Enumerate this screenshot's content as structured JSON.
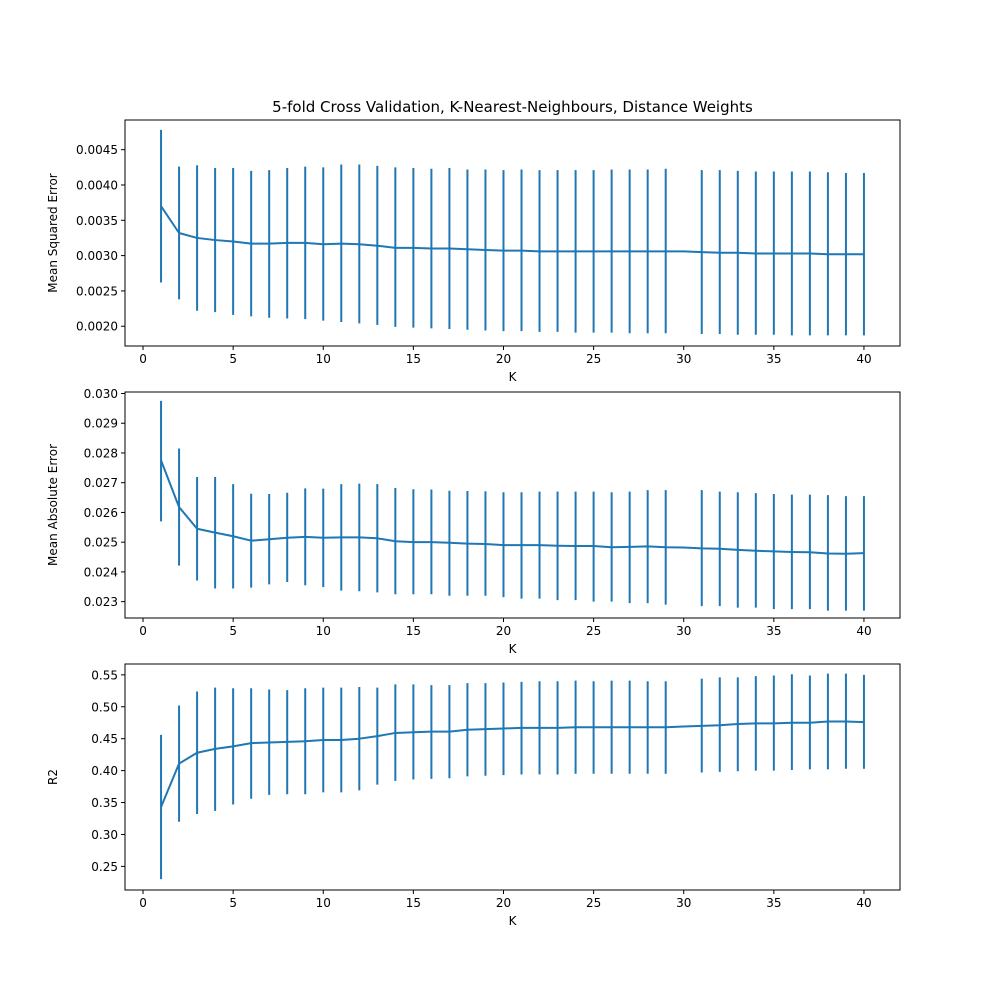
{
  "figure": {
    "title": "5-fold Cross Validation, K-Nearest-Neighbours, Distance Weights"
  },
  "chart_data": [
    {
      "type": "line",
      "title": "5-fold Cross Validation, K-Nearest-Neighbours, Distance Weights",
      "xlabel": "K",
      "ylabel": "Mean Squared Error",
      "xlim": [
        -1,
        42
      ],
      "ylim": [
        0.00172,
        0.00492
      ],
      "xticks": [
        0,
        5,
        10,
        15,
        20,
        25,
        30,
        35,
        40
      ],
      "yticks": [
        0.002,
        0.0025,
        0.003,
        0.0035,
        0.004,
        0.0045
      ],
      "ytick_labels": [
        "0.0020",
        "0.0025",
        "0.0030",
        "0.0035",
        "0.0040",
        "0.0045"
      ],
      "grid": false,
      "color": "#1f77b4",
      "series": [
        {
          "x": [
            1,
            2,
            3,
            4,
            5,
            6,
            7,
            8,
            9,
            10,
            11,
            12,
            13,
            14,
            15,
            16,
            17,
            18,
            19,
            20,
            21,
            22,
            23,
            24,
            25,
            26,
            27,
            28,
            29,
            30,
            31,
            32,
            33,
            34,
            35,
            36,
            37,
            38,
            39,
            40
          ],
          "values": [
            0.0037,
            0.00332,
            0.00325,
            0.00322,
            0.0032,
            0.00317,
            0.00317,
            0.00318,
            0.00318,
            0.00316,
            0.00317,
            0.00316,
            0.00314,
            0.00311,
            0.00311,
            0.0031,
            0.0031,
            0.00309,
            0.00308,
            0.00307,
            0.00307,
            0.00306,
            0.00306,
            0.00306,
            0.00306,
            0.00306,
            0.00306,
            0.00306,
            0.00306,
            0.00306,
            0.00305,
            0.00304,
            0.00304,
            0.00303,
            0.00303,
            0.00303,
            0.00303,
            0.00302,
            0.00302,
            0.00302
          ],
          "error_x": [
            1,
            2,
            3,
            4,
            5,
            6,
            7,
            8,
            9,
            10,
            11,
            12,
            13,
            14,
            15,
            16,
            17,
            18,
            19,
            20,
            21,
            22,
            23,
            24,
            25,
            26,
            27,
            28,
            29,
            31,
            32,
            33,
            34,
            35,
            36,
            37,
            38,
            39,
            40
          ],
          "error_low": [
            0.00262,
            0.00238,
            0.00222,
            0.0022,
            0.00216,
            0.00214,
            0.00212,
            0.00211,
            0.0021,
            0.00208,
            0.00206,
            0.00204,
            0.00202,
            0.00199,
            0.00198,
            0.00197,
            0.00196,
            0.00195,
            0.00194,
            0.00193,
            0.00193,
            0.00192,
            0.00192,
            0.00191,
            0.00191,
            0.00191,
            0.0019,
            0.0019,
            0.0019,
            0.00189,
            0.00189,
            0.00188,
            0.00188,
            0.00188,
            0.00187,
            0.00187,
            0.00187,
            0.00187,
            0.00187
          ],
          "error_high": [
            0.00478,
            0.00426,
            0.00428,
            0.00424,
            0.00424,
            0.0042,
            0.00421,
            0.00424,
            0.00426,
            0.00425,
            0.00429,
            0.00429,
            0.00427,
            0.00425,
            0.00424,
            0.00423,
            0.00424,
            0.00422,
            0.00422,
            0.00421,
            0.00422,
            0.00421,
            0.00421,
            0.00421,
            0.00421,
            0.00422,
            0.00422,
            0.00422,
            0.00423,
            0.00421,
            0.00421,
            0.0042,
            0.00419,
            0.00419,
            0.00419,
            0.00419,
            0.00418,
            0.00417,
            0.00417
          ]
        }
      ]
    },
    {
      "type": "line",
      "title": "",
      "xlabel": "K",
      "ylabel": "Mean Absolute Error",
      "xlim": [
        -1,
        42
      ],
      "ylim": [
        0.02245,
        0.03005
      ],
      "xticks": [
        0,
        5,
        10,
        15,
        20,
        25,
        30,
        35,
        40
      ],
      "yticks": [
        0.023,
        0.024,
        0.025,
        0.026,
        0.027,
        0.028,
        0.029,
        0.03
      ],
      "ytick_labels": [
        "0.023",
        "0.024",
        "0.025",
        "0.026",
        "0.027",
        "0.028",
        "0.029",
        "0.030"
      ],
      "grid": false,
      "color": "#1f77b4",
      "series": [
        {
          "x": [
            1,
            2,
            3,
            4,
            5,
            6,
            7,
            8,
            9,
            10,
            11,
            12,
            13,
            14,
            15,
            16,
            17,
            18,
            19,
            20,
            21,
            22,
            23,
            24,
            25,
            26,
            27,
            28,
            29,
            30,
            31,
            32,
            33,
            34,
            35,
            36,
            37,
            38,
            39,
            40
          ],
          "values": [
            0.02775,
            0.02618,
            0.02545,
            0.02532,
            0.0252,
            0.02505,
            0.0251,
            0.02515,
            0.02518,
            0.02515,
            0.02516,
            0.02516,
            0.02513,
            0.02503,
            0.025,
            0.025,
            0.02498,
            0.02495,
            0.02494,
            0.0249,
            0.0249,
            0.0249,
            0.02488,
            0.02487,
            0.02487,
            0.02483,
            0.02484,
            0.02486,
            0.02483,
            0.02482,
            0.02479,
            0.02478,
            0.02474,
            0.02471,
            0.02469,
            0.02467,
            0.02466,
            0.02462,
            0.02461,
            0.02463
          ],
          "error_x": [
            1,
            2,
            3,
            4,
            5,
            6,
            7,
            8,
            9,
            10,
            11,
            12,
            13,
            14,
            15,
            16,
            17,
            18,
            19,
            20,
            21,
            22,
            23,
            24,
            25,
            26,
            27,
            28,
            29,
            31,
            32,
            33,
            34,
            35,
            36,
            37,
            38,
            39,
            40
          ],
          "error_low": [
            0.0257,
            0.02421,
            0.02371,
            0.02344,
            0.02344,
            0.02347,
            0.02358,
            0.02366,
            0.02355,
            0.02349,
            0.02337,
            0.02335,
            0.02331,
            0.02325,
            0.02325,
            0.02325,
            0.0232,
            0.0232,
            0.0232,
            0.02315,
            0.0231,
            0.0231,
            0.02305,
            0.02305,
            0.023,
            0.023,
            0.02295,
            0.02295,
            0.0229,
            0.02285,
            0.02285,
            0.0228,
            0.0228,
            0.02275,
            0.02275,
            0.02275,
            0.0227,
            0.0227,
            0.0227
          ],
          "error_high": [
            0.02975,
            0.02815,
            0.02719,
            0.02719,
            0.02695,
            0.02663,
            0.02662,
            0.02666,
            0.02681,
            0.0268,
            0.02695,
            0.02697,
            0.02695,
            0.02682,
            0.02678,
            0.02677,
            0.02673,
            0.02672,
            0.02671,
            0.02668,
            0.02668,
            0.0267,
            0.0267,
            0.0267,
            0.0267,
            0.02668,
            0.0267,
            0.02675,
            0.02675,
            0.02675,
            0.0267,
            0.02668,
            0.02665,
            0.02662,
            0.0266,
            0.0266,
            0.02658,
            0.02655,
            0.02655
          ]
        }
      ]
    },
    {
      "type": "line",
      "title": "",
      "xlabel": "K",
      "ylabel": "R2",
      "xlim": [
        -1,
        42
      ],
      "ylim": [
        0.213,
        0.567
      ],
      "xticks": [
        0,
        5,
        10,
        15,
        20,
        25,
        30,
        35,
        40
      ],
      "yticks": [
        0.25,
        0.3,
        0.35,
        0.4,
        0.45,
        0.5,
        0.55
      ],
      "ytick_labels": [
        "0.25",
        "0.30",
        "0.35",
        "0.40",
        "0.45",
        "0.50",
        "0.55"
      ],
      "grid": false,
      "color": "#1f77b4",
      "series": [
        {
          "x": [
            1,
            2,
            3,
            4,
            5,
            6,
            7,
            8,
            9,
            10,
            11,
            12,
            13,
            14,
            15,
            16,
            17,
            18,
            19,
            20,
            21,
            22,
            23,
            24,
            25,
            26,
            27,
            28,
            29,
            30,
            31,
            32,
            33,
            34,
            35,
            36,
            37,
            38,
            39,
            40
          ],
          "values": [
            0.343,
            0.411,
            0.428,
            0.434,
            0.438,
            0.443,
            0.444,
            0.445,
            0.446,
            0.448,
            0.448,
            0.45,
            0.454,
            0.459,
            0.46,
            0.461,
            0.461,
            0.464,
            0.465,
            0.466,
            0.467,
            0.467,
            0.467,
            0.468,
            0.468,
            0.468,
            0.468,
            0.468,
            0.468,
            0.469,
            0.47,
            0.471,
            0.473,
            0.474,
            0.474,
            0.475,
            0.475,
            0.477,
            0.477,
            0.476
          ],
          "error_x": [
            1,
            2,
            3,
            4,
            5,
            6,
            7,
            8,
            9,
            10,
            11,
            12,
            13,
            14,
            15,
            16,
            17,
            18,
            19,
            20,
            21,
            22,
            23,
            24,
            25,
            26,
            27,
            28,
            29,
            31,
            32,
            33,
            34,
            35,
            36,
            37,
            38,
            39,
            40
          ],
          "error_low": [
            0.23,
            0.32,
            0.332,
            0.337,
            0.347,
            0.356,
            0.362,
            0.363,
            0.363,
            0.366,
            0.366,
            0.369,
            0.378,
            0.384,
            0.386,
            0.387,
            0.388,
            0.391,
            0.392,
            0.393,
            0.394,
            0.394,
            0.394,
            0.395,
            0.395,
            0.395,
            0.395,
            0.395,
            0.395,
            0.397,
            0.398,
            0.399,
            0.4,
            0.4,
            0.401,
            0.402,
            0.402,
            0.403,
            0.403
          ],
          "error_high": [
            0.456,
            0.502,
            0.524,
            0.53,
            0.529,
            0.529,
            0.527,
            0.526,
            0.529,
            0.53,
            0.53,
            0.531,
            0.53,
            0.535,
            0.535,
            0.534,
            0.534,
            0.537,
            0.537,
            0.538,
            0.539,
            0.54,
            0.54,
            0.541,
            0.54,
            0.541,
            0.541,
            0.54,
            0.54,
            0.544,
            0.546,
            0.546,
            0.548,
            0.549,
            0.551,
            0.549,
            0.552,
            0.552,
            0.55
          ]
        }
      ]
    }
  ]
}
